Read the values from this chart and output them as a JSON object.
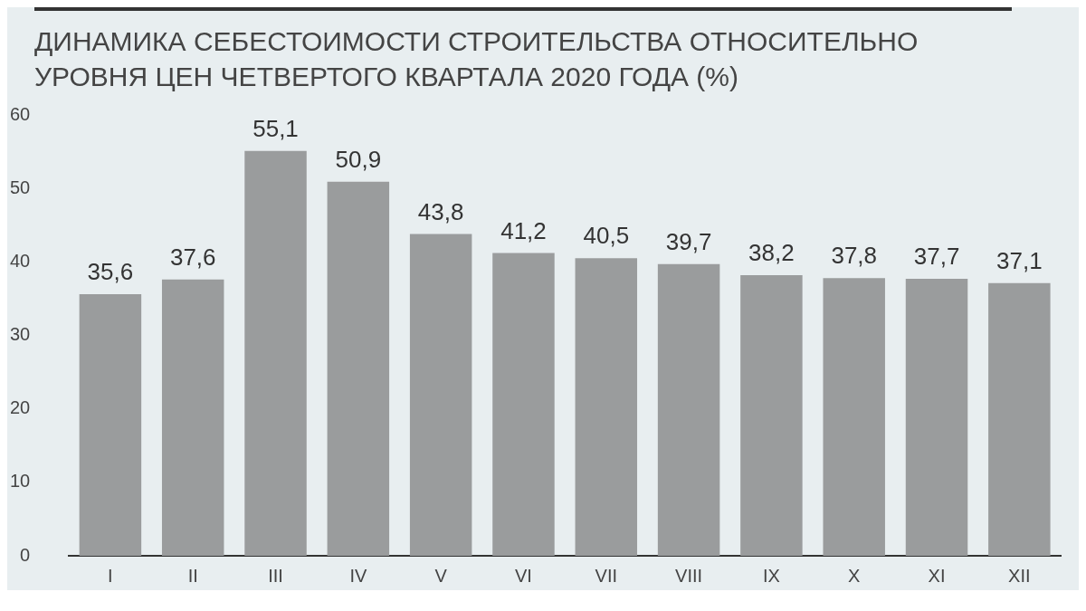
{
  "chart_data": {
    "type": "bar",
    "title": "ДИНАМИКА СЕБЕСТОИМОСТИ СТРОИТЕЛЬСТВА ОТНОСИТЕЛЬНО УРОВНЯ ЦЕН ЧЕТВЕРТОГО КВАРТАЛА 2020 ГОДА (%)",
    "categories": [
      "I",
      "II",
      "III",
      "IV",
      "V",
      "VI",
      "VII",
      "VIII",
      "IX",
      "X",
      "XI",
      "XII"
    ],
    "values": [
      35.6,
      37.6,
      55.1,
      50.9,
      43.8,
      41.2,
      40.5,
      39.7,
      38.2,
      37.8,
      37.7,
      37.1
    ],
    "value_labels": [
      "35,6",
      "37,6",
      "55,1",
      "50,9",
      "43,8",
      "41,2",
      "40,5",
      "39,7",
      "38,2",
      "37,8",
      "37,7",
      "37,1"
    ],
    "color": "#9a9c9d",
    "ylim": [
      0,
      60
    ],
    "yticks": [
      0,
      10,
      20,
      30,
      40,
      50,
      60
    ],
    "grid": false,
    "legend": false
  }
}
